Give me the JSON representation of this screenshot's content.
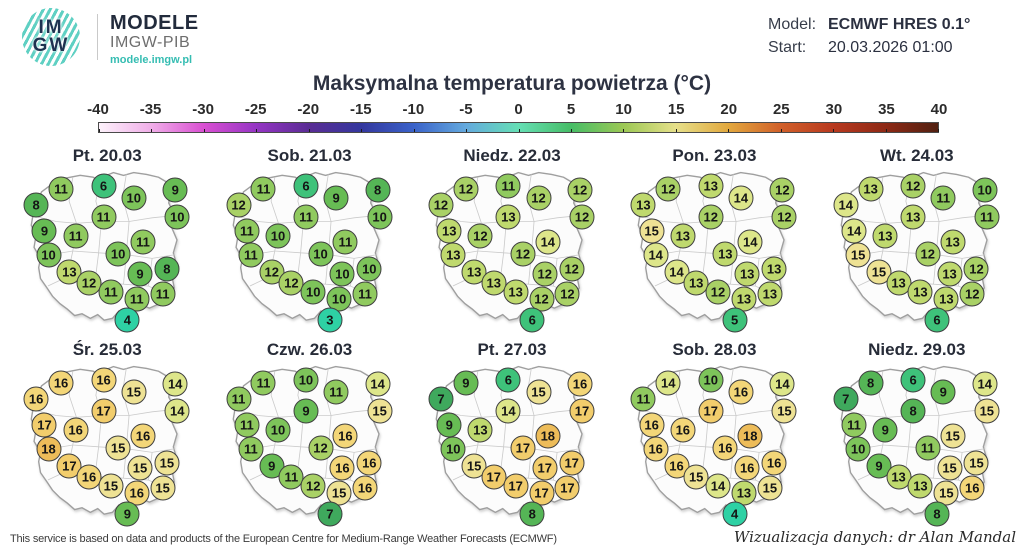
{
  "header": {
    "logo_top": "IM",
    "logo_bottom": "GW",
    "brand": "MODELE",
    "brand_sub": "IMGW-PIB",
    "site": "modele.imgw.pl",
    "model_label": "Model:",
    "model_value": "ECMWF HRES 0.1°",
    "start_label": "Start:",
    "start_value": "20.03.2026 01:00"
  },
  "title": "Maksymalna temperatura powietrza (°C)",
  "colorbar": {
    "unit": "°C",
    "ticks": [
      -40,
      -35,
      -30,
      -25,
      -20,
      -15,
      -10,
      -5,
      0,
      5,
      10,
      15,
      20,
      25,
      30,
      35,
      40
    ],
    "gradient": [
      "#fdf2fb",
      "#f0aee8",
      "#d94fd2",
      "#9535c4",
      "#5a2c94",
      "#34379e",
      "#3a62c9",
      "#64aade",
      "#65dfb5",
      "#46bd66",
      "#9cc855",
      "#e6e08a",
      "#e2a83e",
      "#d1602a",
      "#b8391f",
      "#8e2915",
      "#512011"
    ]
  },
  "value_colors": {
    "3": "#2ed1a4",
    "4": "#2ed1a4",
    "5": "#3ec27a",
    "6": "#3ec27a",
    "7": "#3fa95d",
    "8": "#55b556",
    "9": "#67bc54",
    "10": "#7dc45a",
    "11": "#90ca5f",
    "12": "#a9d166",
    "13": "#bfd96e",
    "14": "#dde68a",
    "15": "#eee294",
    "16": "#f3d678",
    "17": "#f2cd6c",
    "18": "#edbc59"
  },
  "map_layout": {
    "bubble_positions": [
      [
        27.2,
        22.4
      ],
      [
        48.2,
        20.8
      ],
      [
        63.1,
        27.1
      ],
      [
        83.6,
        22.9
      ],
      [
        14.9,
        30.7
      ],
      [
        84.6,
        37.0
      ],
      [
        48.2,
        37.0
      ],
      [
        19.0,
        43.8
      ],
      [
        34.4,
        46.4
      ],
      [
        67.7,
        49.5
      ],
      [
        21.0,
        56.3
      ],
      [
        55.4,
        55.7
      ],
      [
        31.3,
        65.1
      ],
      [
        66.2,
        66.1
      ],
      [
        79.5,
        63.5
      ],
      [
        41.0,
        70.8
      ],
      [
        51.8,
        75.5
      ],
      [
        64.6,
        79.2
      ],
      [
        77.4,
        76.6
      ],
      [
        60.0,
        90.1
      ]
    ]
  },
  "chart_data": {
    "type": "heatmap",
    "geometry": "poland-temperature-bubble-maps",
    "title": "Maksymalna temperatura powietrza (°C)",
    "unit": "°C",
    "color_scale": {
      "min": -40,
      "max": 40,
      "tick_step": 5
    },
    "panels": [
      {
        "label": "Pt. 20.03",
        "values": [
          11,
          6,
          10,
          9,
          8,
          10,
          11,
          9,
          11,
          11,
          10,
          10,
          13,
          9,
          8,
          12,
          11,
          11,
          11,
          4
        ]
      },
      {
        "label": "Sob. 21.03",
        "values": [
          11,
          6,
          9,
          8,
          12,
          10,
          11,
          11,
          10,
          11,
          11,
          10,
          12,
          10,
          10,
          12,
          10,
          10,
          11,
          3
        ]
      },
      {
        "label": "Niedz. 22.03",
        "values": [
          12,
          11,
          12,
          12,
          12,
          12,
          13,
          13,
          12,
          14,
          13,
          12,
          13,
          12,
          12,
          13,
          13,
          12,
          12,
          6
        ]
      },
      {
        "label": "Pon. 23.03",
        "values": [
          12,
          13,
          14,
          12,
          13,
          12,
          12,
          15,
          13,
          14,
          14,
          13,
          14,
          13,
          13,
          13,
          12,
          13,
          13,
          5
        ]
      },
      {
        "label": "Wt. 24.03",
        "values": [
          13,
          12,
          11,
          10,
          14,
          11,
          13,
          14,
          13,
          13,
          15,
          12,
          15,
          13,
          12,
          13,
          13,
          13,
          12,
          6
        ]
      },
      {
        "label": "Śr. 25.03",
        "values": [
          16,
          16,
          15,
          14,
          16,
          14,
          17,
          17,
          16,
          16,
          18,
          15,
          17,
          15,
          15,
          16,
          15,
          16,
          15,
          9
        ]
      },
      {
        "label": "Czw. 26.03",
        "values": [
          11,
          10,
          11,
          14,
          11,
          15,
          9,
          11,
          10,
          16,
          11,
          12,
          9,
          16,
          16,
          11,
          12,
          15,
          16,
          7
        ]
      },
      {
        "label": "Pt. 27.03",
        "values": [
          9,
          6,
          15,
          16,
          7,
          17,
          14,
          9,
          13,
          18,
          10,
          17,
          15,
          17,
          17,
          17,
          17,
          17,
          17,
          8
        ]
      },
      {
        "label": "Sob. 28.03",
        "values": [
          14,
          10,
          16,
          14,
          11,
          15,
          17,
          16,
          16,
          18,
          16,
          16,
          16,
          16,
          16,
          15,
          14,
          13,
          15,
          4
        ]
      },
      {
        "label": "Niedz. 29.03",
        "values": [
          8,
          6,
          9,
          14,
          7,
          15,
          8,
          11,
          9,
          15,
          10,
          11,
          9,
          15,
          15,
          13,
          13,
          15,
          16,
          8
        ]
      }
    ]
  },
  "footer": {
    "left": "This service is based on data and products of the European Centre for Medium-Range Weather Forecasts (ECMWF)",
    "right": "Wizualizacja danych: dr Alan Mandal"
  },
  "colors": {
    "brand_navy": "#222b3c",
    "brand_teal": "#35bdb2",
    "title_text": "#2d3242"
  }
}
